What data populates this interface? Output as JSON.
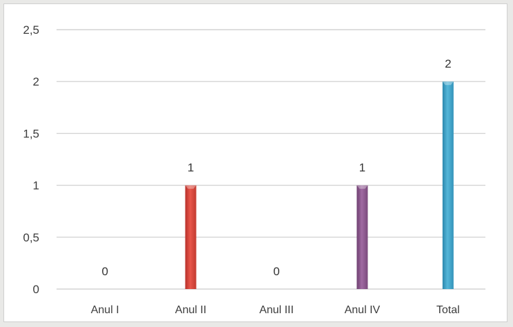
{
  "chart_data": {
    "type": "bar",
    "categories": [
      "Anul I",
      "Anul II",
      "Anul III",
      "Anul IV",
      "Total"
    ],
    "values": [
      0,
      1,
      0,
      1,
      2
    ],
    "data_labels": [
      "0",
      "1",
      "0",
      "1",
      "2"
    ],
    "bar_colors": [
      "#d9534f",
      "#e04a3c",
      "#4aa6c8",
      "#8e5a8f",
      "#3fa4c9"
    ],
    "ylim": [
      0,
      2.5
    ],
    "yticks": [
      0,
      0.5,
      1,
      1.5,
      2,
      2.5
    ],
    "ytick_labels": [
      "0",
      "0,5",
      "1",
      "1,5",
      "2",
      "2,5"
    ],
    "grid": true,
    "legend": "none",
    "title": "",
    "xlabel": "",
    "ylabel": ""
  }
}
